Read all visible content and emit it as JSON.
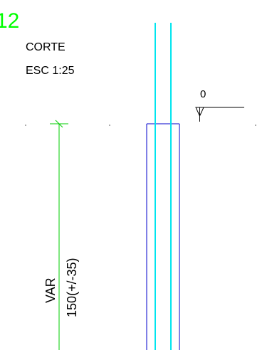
{
  "drawing": {
    "section_number": "12",
    "view_title": "CORTE",
    "view_scale": "ESC 1:25",
    "level_mark": "0",
    "dimension_label": "VAR",
    "dimension_value": "150(+/-35)"
  },
  "colors": {
    "background": "#ffffff",
    "section_number": "#00ff00",
    "text": "#000000",
    "rebar": "#00e5ee",
    "outline": "#0000cc",
    "dimension": "#00cc00",
    "level_line": "#000000"
  }
}
